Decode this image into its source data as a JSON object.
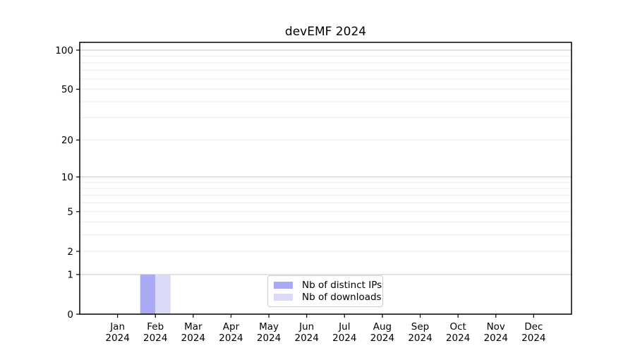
{
  "chart_data": {
    "type": "bar",
    "title": "devEMF 2024",
    "x_categories_months": [
      "Jan",
      "Feb",
      "Mar",
      "Apr",
      "May",
      "Jun",
      "Jul",
      "Aug",
      "Sep",
      "Oct",
      "Nov",
      "Dec"
    ],
    "x_year_label": "2024",
    "series": [
      {
        "name": "Nb of distinct IPs",
        "color": "#aaaaf4",
        "values": [
          0,
          1,
          0,
          0,
          0,
          0,
          0,
          0,
          0,
          0,
          0,
          0
        ]
      },
      {
        "name": "Nb of downloads",
        "color": "#dbdbf8",
        "values": [
          0,
          1,
          0,
          0,
          0,
          0,
          0,
          0,
          0,
          0,
          0,
          0
        ]
      }
    ],
    "y_axis": {
      "scale": "log10(value+1)",
      "tick_values": [
        0,
        1,
        2,
        5,
        10,
        20,
        50,
        100
      ],
      "major_gridlines": [
        1,
        10,
        100
      ],
      "minor_gridlines": [
        2,
        3,
        4,
        5,
        6,
        7,
        8,
        9,
        20,
        30,
        40,
        50,
        60,
        70,
        80,
        90
      ],
      "ylim": [
        0,
        115
      ]
    },
    "legend": {
      "position": "lower center",
      "entries": [
        "Nb of distinct IPs",
        "Nb of downloads"
      ]
    },
    "grid": true,
    "frame": true,
    "colors": {
      "frame": "#000000",
      "major_grid": "#c6c6c6",
      "minor_grid": "#ececec",
      "text": "#000000"
    }
  }
}
